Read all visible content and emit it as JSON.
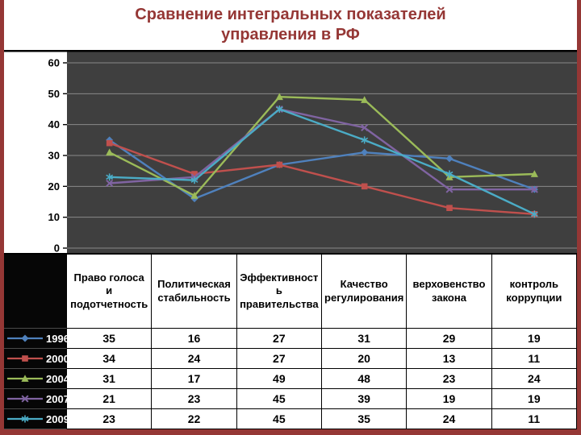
{
  "title": {
    "line1": "Сравнение интегральных показателей",
    "line2": "управления в РФ"
  },
  "colors": {
    "title_text": "#953735",
    "page_border": "#953735",
    "plot_background": "#3f3f3f",
    "gridline": "#8a8a8a",
    "axis_text": "#000000",
    "table_cell_background": "#ffffff",
    "table_text": "#000000",
    "legend_cell_background": "#060606",
    "legend_text": "#ffffff"
  },
  "chart_data": {
    "type": "line",
    "title": "Сравнение интегральных показателей управления в РФ",
    "categories": [
      "Право голоса и подотчетность",
      "Политическая стабильность",
      "Эффективность правительства",
      "Качество регулирования",
      "верховенство закона",
      "контроль коррупции"
    ],
    "series": [
      {
        "name": "1996",
        "color": "#4F81BD",
        "marker": "diamond",
        "values": [
          35,
          16,
          27,
          31,
          29,
          19
        ]
      },
      {
        "name": "2000",
        "color": "#C0504D",
        "marker": "square",
        "values": [
          34,
          24,
          27,
          20,
          13,
          11
        ]
      },
      {
        "name": "2004",
        "color": "#9BBB59",
        "marker": "triangle",
        "values": [
          31,
          17,
          49,
          48,
          23,
          24
        ]
      },
      {
        "name": "2007",
        "color": "#8064A2",
        "marker": "x",
        "values": [
          21,
          23,
          45,
          39,
          19,
          19
        ]
      },
      {
        "name": "2009",
        "color": "#4BACC6",
        "marker": "asterisk",
        "values": [
          23,
          22,
          45,
          35,
          24,
          11
        ]
      }
    ],
    "ylim": [
      0,
      60
    ],
    "ytick_step": 10,
    "yticks": [
      0,
      10,
      20,
      30,
      40,
      50,
      60
    ],
    "grid": true,
    "legend_position": "table-left",
    "data_table_shown": true
  }
}
